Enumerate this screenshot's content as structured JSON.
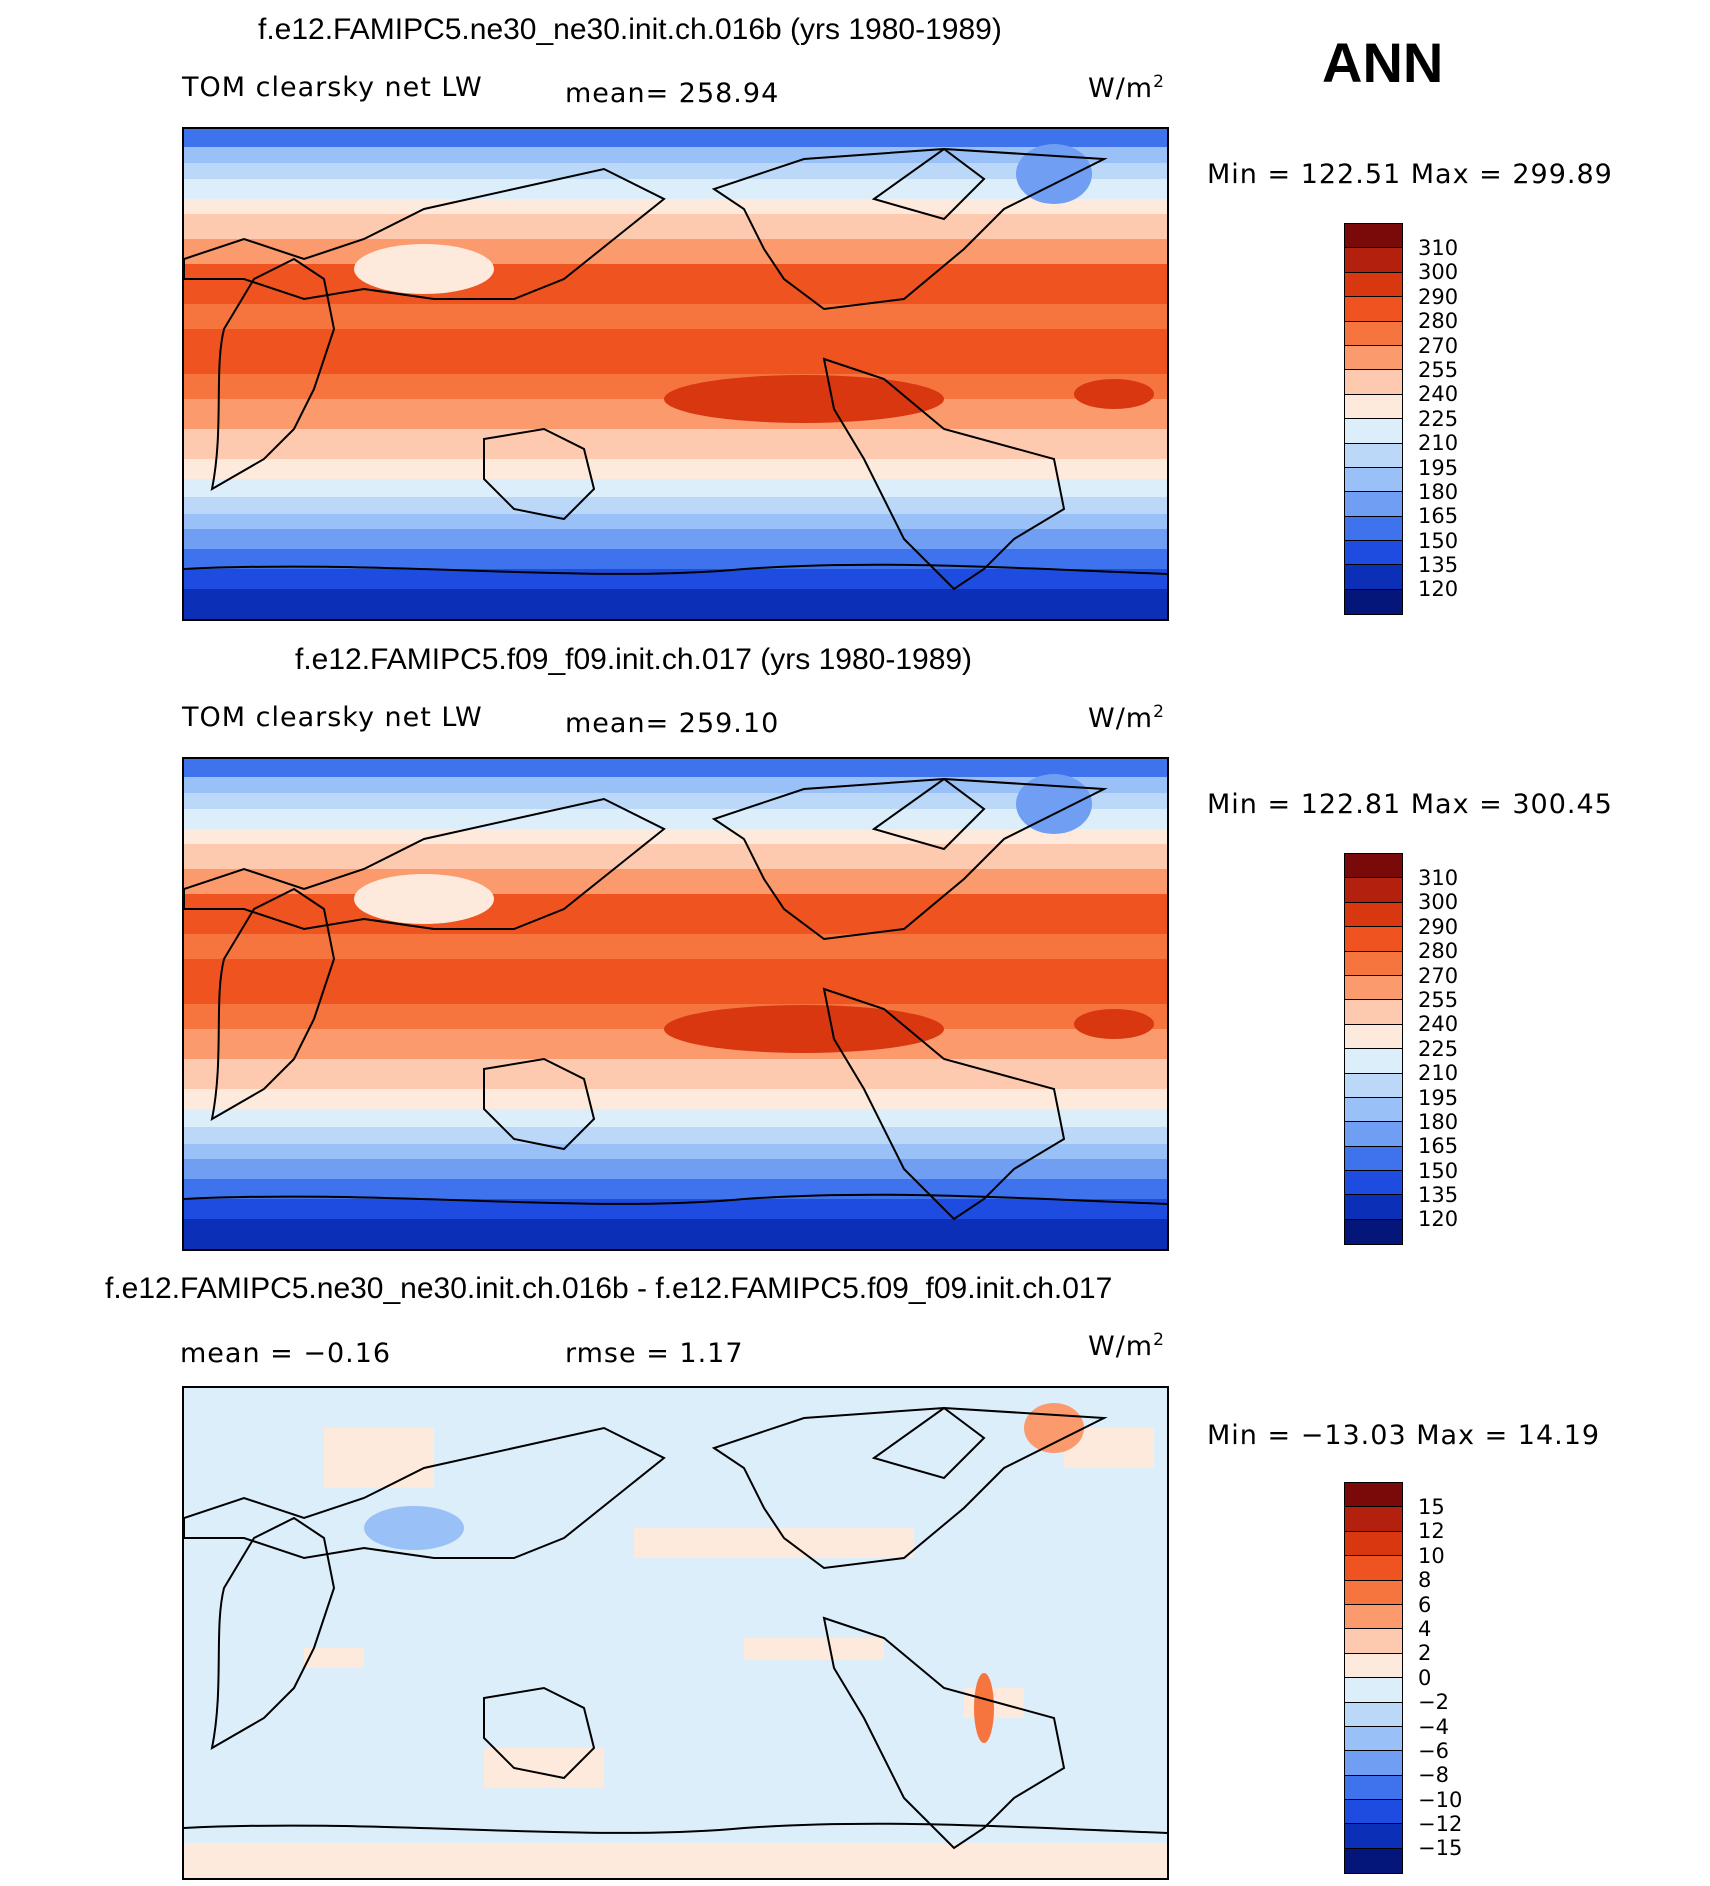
{
  "season": "ANN",
  "panels": [
    {
      "id": "panel-1",
      "title": "f.e12.FAMIPC5.ne30_ne30.init.ch.016b (yrs 1980-1989)",
      "left_label": "TOM clearsky net LW",
      "mean_label": "mean= 258.94",
      "unit_base": "W/m",
      "unit_sup": "2",
      "minmax": "Min = 122.51 Max = 299.89",
      "colorbar": {
        "labels": [
          "310",
          "300",
          "290",
          "280",
          "270",
          "255",
          "240",
          "225",
          "210",
          "195",
          "180",
          "165",
          "150",
          "135",
          "120"
        ],
        "colors": [
          "#7a0a0a",
          "#b3200e",
          "#d8370f",
          "#ee5320",
          "#f6743e",
          "#fb9a6c",
          "#fdcab0",
          "#fdeadd",
          "#ddeefb",
          "#bcd8f9",
          "#99c0f7",
          "#6f9ef3",
          "#3f73ee",
          "#1f4ce0",
          "#0c2fb8",
          "#05167a"
        ]
      },
      "map_kind": "absolute"
    },
    {
      "id": "panel-2",
      "title": "f.e12.FAMIPC5.f09_f09.init.ch.017 (yrs 1980-1989)",
      "left_label": "TOM clearsky net LW",
      "mean_label": "mean= 259.10",
      "unit_base": "W/m",
      "unit_sup": "2",
      "minmax": "Min = 122.81 Max = 300.45",
      "colorbar": {
        "labels": [
          "310",
          "300",
          "290",
          "280",
          "270",
          "255",
          "240",
          "225",
          "210",
          "195",
          "180",
          "165",
          "150",
          "135",
          "120"
        ],
        "colors": [
          "#7a0a0a",
          "#b3200e",
          "#d8370f",
          "#ee5320",
          "#f6743e",
          "#fb9a6c",
          "#fdcab0",
          "#fdeadd",
          "#ddeefb",
          "#bcd8f9",
          "#99c0f7",
          "#6f9ef3",
          "#3f73ee",
          "#1f4ce0",
          "#0c2fb8",
          "#05167a"
        ]
      },
      "map_kind": "absolute"
    },
    {
      "id": "panel-3",
      "title": "f.e12.FAMIPC5.ne30_ne30.init.ch.016b - f.e12.FAMIPC5.f09_f09.init.ch.017",
      "left_label": "mean = −0.16",
      "mean_label": "rmse = 1.17",
      "unit_base": "W/m",
      "unit_sup": "2",
      "minmax": "Min = −13.03 Max = 14.19",
      "colorbar": {
        "labels": [
          "15",
          "12",
          "10",
          "8",
          "6",
          "4",
          "2",
          "0",
          "−2",
          "−4",
          "−6",
          "−8",
          "−10",
          "−12",
          "−15"
        ],
        "colors": [
          "#7a0a0a",
          "#b3200e",
          "#d8370f",
          "#ee5320",
          "#f6743e",
          "#fb9a6c",
          "#fdcab0",
          "#fdeadd",
          "#ddeefb",
          "#bcd8f9",
          "#99c0f7",
          "#6f9ef3",
          "#3f73ee",
          "#1f4ce0",
          "#0c2fb8",
          "#05167a"
        ]
      },
      "map_kind": "difference"
    }
  ]
}
